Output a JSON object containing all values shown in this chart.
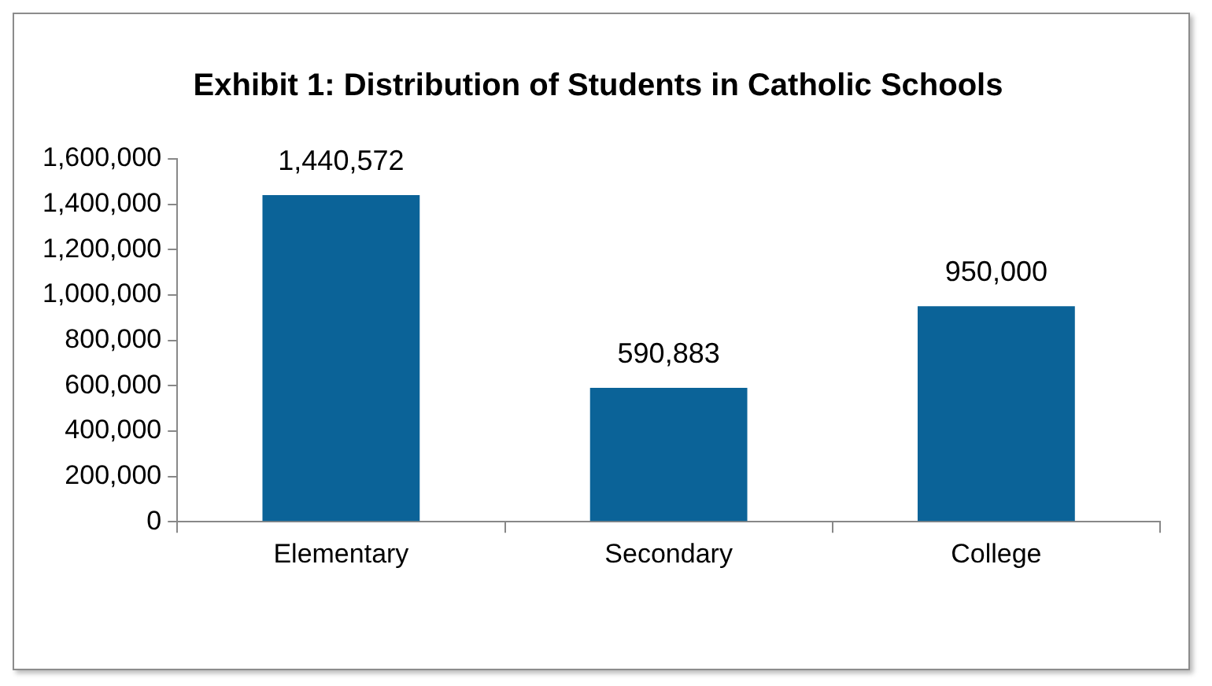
{
  "chart_data": {
    "type": "bar",
    "title": "Exhibit 1: Distribution of Students in Catholic Schools",
    "categories": [
      "Elementary",
      "Secondary",
      "College"
    ],
    "values": [
      1440572,
      590883,
      950000
    ],
    "value_labels": [
      "1,440,572",
      "590,883",
      "950,000"
    ],
    "color": "#0b6398",
    "ylim": [
      0,
      1600000
    ],
    "yticks": [
      {
        "value": 0,
        "label": "0"
      },
      {
        "value": 200000,
        "label": "200,000"
      },
      {
        "value": 400000,
        "label": "400,000"
      },
      {
        "value": 600000,
        "label": "600,000"
      },
      {
        "value": 800000,
        "label": "800,000"
      },
      {
        "value": 1000000,
        "label": "1,000,000"
      },
      {
        "value": 1200000,
        "label": "1,200,000"
      },
      {
        "value": 1400000,
        "label": "1,400,000"
      },
      {
        "value": 1600000,
        "label": "1,600,000"
      }
    ],
    "legend": false
  }
}
